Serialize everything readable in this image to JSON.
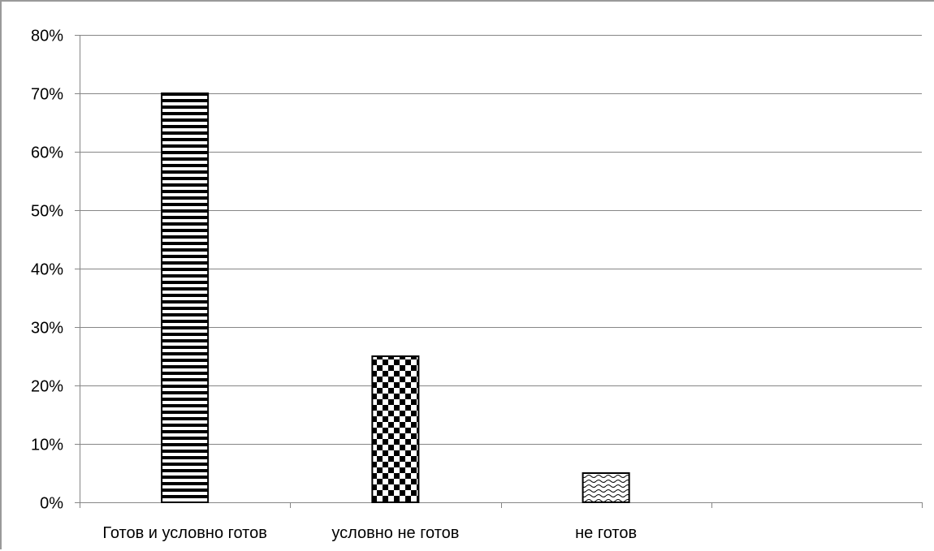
{
  "chart_data": {
    "type": "bar",
    "categories": [
      "Готов и условно готов",
      "условно не готов",
      "не готов"
    ],
    "values": [
      70,
      25,
      5
    ],
    "category_slots": 4,
    "ylim": [
      0,
      80
    ],
    "yticks": [
      0,
      10,
      20,
      30,
      40,
      50,
      60,
      70,
      80
    ],
    "ytick_format": "{v}%",
    "grid": true,
    "legend": "none",
    "title": "",
    "xlabel": "",
    "ylabel": "",
    "bar_patterns": [
      "horizontal-stripes",
      "checkerboard",
      "wave"
    ],
    "colors": {
      "bar_fill": "#000000",
      "bar_border": "#000000",
      "grid": "#868686",
      "axis": "#868686"
    }
  }
}
